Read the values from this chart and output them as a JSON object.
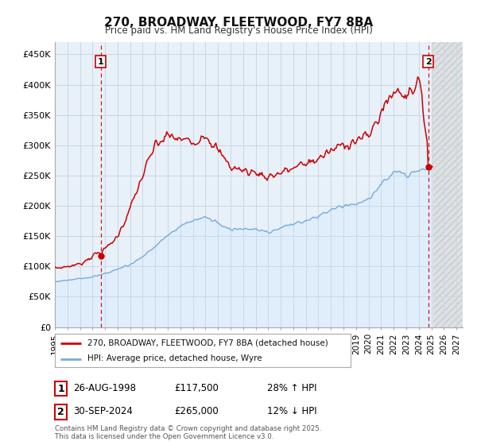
{
  "title": "270, BROADWAY, FLEETWOOD, FY7 8BA",
  "subtitle": "Price paid vs. HM Land Registry's House Price Index (HPI)",
  "ylim": [
    0,
    470000
  ],
  "yticks": [
    0,
    50000,
    100000,
    150000,
    200000,
    250000,
    300000,
    350000,
    400000,
    450000
  ],
  "ytick_labels": [
    "£0",
    "£50K",
    "£100K",
    "£150K",
    "£200K",
    "£250K",
    "£300K",
    "£350K",
    "£400K",
    "£450K"
  ],
  "xlim_start": 1995.0,
  "xlim_end": 2027.5,
  "xticks": [
    1995,
    1996,
    1997,
    1998,
    1999,
    2000,
    2001,
    2002,
    2003,
    2004,
    2005,
    2006,
    2007,
    2008,
    2009,
    2010,
    2011,
    2012,
    2013,
    2014,
    2015,
    2016,
    2017,
    2018,
    2019,
    2020,
    2021,
    2022,
    2023,
    2024,
    2025,
    2026,
    2027
  ],
  "red_line_color": "#cc0000",
  "blue_line_color": "#7aaadd",
  "blue_fill_color": "#ddeeff",
  "marker1_date": 1998.65,
  "marker1_value": 117500,
  "marker2_date": 2024.75,
  "marker2_value": 265000,
  "legend_line1": "270, BROADWAY, FLEETWOOD, FY7 8BA (detached house)",
  "legend_line2": "HPI: Average price, detached house, Wyre",
  "annotation1_date": "26-AUG-1998",
  "annotation1_price": "£117,500",
  "annotation1_hpi": "28% ↑ HPI",
  "annotation2_date": "30-SEP-2024",
  "annotation2_price": "£265,000",
  "annotation2_hpi": "12% ↓ HPI",
  "footer": "Contains HM Land Registry data © Crown copyright and database right 2025.\nThis data is licensed under the Open Government Licence v3.0.",
  "background_color": "#ffffff",
  "plot_bg_color": "#e8f0f8",
  "grid_color": "#c8d8e8",
  "hpi_yearly": [
    75000,
    77500,
    80000,
    83000,
    88000,
    95000,
    103000,
    116000,
    133000,
    152000,
    166000,
    176000,
    181000,
    172000,
    160000,
    162000,
    160000,
    157000,
    163000,
    170000,
    176000,
    183000,
    193000,
    200000,
    203000,
    211000,
    234000,
    256000,
    253000,
    258000,
    263000
  ],
  "hpi_years": [
    1995,
    1996,
    1997,
    1998,
    1999,
    2000,
    2001,
    2002,
    2003,
    2004,
    2005,
    2006,
    2007,
    2008,
    2009,
    2010,
    2011,
    2012,
    2013,
    2014,
    2015,
    2016,
    2017,
    2018,
    2019,
    2020,
    2021,
    2022,
    2023,
    2024,
    2025
  ],
  "red_yearly": [
    97000,
    100000,
    104000,
    117500,
    128000,
    150000,
    195000,
    250000,
    300000,
    315000,
    310000,
    305000,
    320000,
    290000,
    265000,
    258000,
    255000,
    248000,
    255000,
    262000,
    270000,
    278000,
    290000,
    302000,
    308000,
    315000,
    355000,
    390000,
    385000,
    405000,
    265000
  ],
  "noise_seed_blue": 1,
  "noise_seed_red": 7,
  "noise_scale_blue": 0.012,
  "noise_scale_red": 0.025
}
